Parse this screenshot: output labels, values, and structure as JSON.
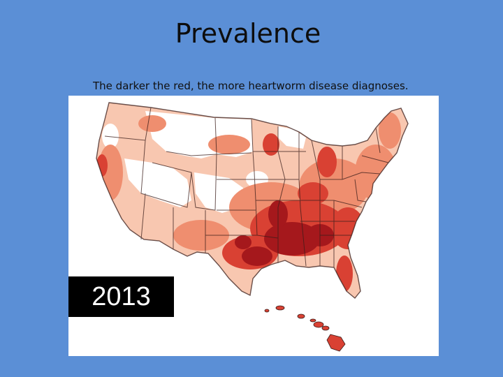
{
  "slide": {
    "title": "Prevalence",
    "subtitle": "The darker the red, the more heartworm disease diagnoses."
  },
  "map": {
    "year": "2013",
    "colors": {
      "background": "#5b8fd6",
      "none": "#ffffff",
      "low": "#f8c7b0",
      "medium": "#ef8e6f",
      "high": "#d94133",
      "very_high": "#a5181c",
      "boundary": "#3a1d1a"
    }
  }
}
